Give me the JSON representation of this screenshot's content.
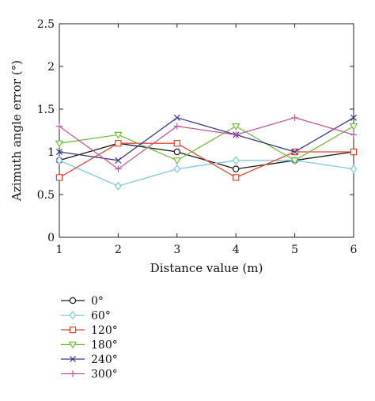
{
  "chart_data": {
    "type": "line",
    "title": "",
    "xlabel": "Distance value (m)",
    "ylabel": "Azimuth angle error (°)",
    "xlim": [
      1,
      6
    ],
    "ylim": [
      0,
      2.5
    ],
    "xticks": [
      1,
      2,
      3,
      4,
      5,
      6
    ],
    "yticks": [
      0,
      0.5,
      1,
      1.5,
      2,
      2.5
    ],
    "xtick_labels": [
      "1",
      "2",
      "3",
      "4",
      "5",
      "6"
    ],
    "ytick_labels": [
      "0",
      "0.5",
      "1",
      "1.5",
      "2",
      "2.5"
    ],
    "grid": false,
    "legend_position": "below",
    "x": [
      1,
      2,
      3,
      4,
      5,
      6
    ],
    "series": [
      {
        "name": "0°",
        "color": "#1a1a1a",
        "marker": "circle",
        "values": [
          0.9,
          1.1,
          1.0,
          0.8,
          0.9,
          1.0
        ]
      },
      {
        "name": "60°",
        "color": "#7ec8e3",
        "marker": "diamond",
        "values": [
          0.9,
          0.6,
          0.8,
          0.9,
          0.9,
          0.8
        ]
      },
      {
        "name": "120°",
        "color": "#e8462a",
        "marker": "square",
        "values": [
          0.7,
          1.1,
          1.1,
          0.7,
          1.0,
          1.0
        ]
      },
      {
        "name": "180°",
        "color": "#6fbf3a",
        "marker": "triangle-down",
        "values": [
          1.1,
          1.2,
          0.9,
          1.3,
          0.9,
          1.3
        ]
      },
      {
        "name": "240°",
        "color": "#3b3b8f",
        "marker": "x",
        "values": [
          1.0,
          0.9,
          1.4,
          1.2,
          1.0,
          1.4
        ]
      },
      {
        "name": "300°",
        "color": "#c45a9c",
        "marker": "plus",
        "values": [
          1.3,
          0.8,
          1.3,
          1.2,
          1.4,
          1.2
        ]
      }
    ]
  }
}
